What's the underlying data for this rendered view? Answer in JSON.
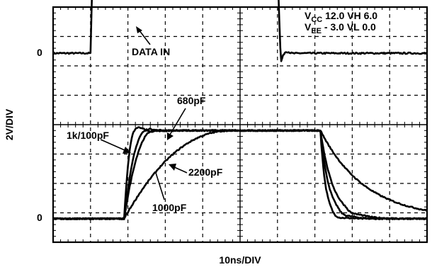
{
  "chart_data": {
    "type": "line",
    "title": "",
    "xlabel": "10ns/DIV",
    "ylabel": "2V/DIV",
    "x_unit": "ns",
    "x_range": [
      0,
      100
    ],
    "x_divisions": 10,
    "y_divisions": 8,
    "grid": true,
    "settings": {
      "vcc_prefix": "V",
      "vcc_sub": "CC",
      "vcc_text": " 12.0 VH 6.0",
      "vee_prefix": "V",
      "vee_sub": "EE",
      "vee_text": " - 3.0 VL 0.0"
    },
    "zero_labels": {
      "top": "0",
      "bottom": "0"
    },
    "annotations": {
      "data_in": "DATA IN",
      "c680": "680pF",
      "c1k100": "1k/100pF",
      "c2200": "2200pF",
      "c1000": "1000pF"
    },
    "input_trace": {
      "name": "DATA IN",
      "rise_ns": 10.0,
      "fall_ns": 60.0,
      "low_V": 0.0,
      "high_V": 6.0
    },
    "series": [
      {
        "name": "1k/100pF",
        "rise_start_ns": 19.0,
        "rise_end_ns": 22.0,
        "overshoot_V": 0.3,
        "fall_tau_ns": 1.4
      },
      {
        "name": "680pF",
        "rise_start_ns": 19.0,
        "rise_end_ns": 25.0,
        "overshoot_V": 0.15,
        "fall_tau_ns": 2.3
      },
      {
        "name": "1000pF",
        "rise_start_ns": 19.0,
        "rise_end_ns": 27.0,
        "overshoot_V": 0.05,
        "fall_tau_ns": 3.4
      },
      {
        "name": "2200pF",
        "rise_start_ns": 19.0,
        "rise_end_ns": 48.0,
        "overshoot_V": 0.0,
        "fall_tau_ns": 12.0
      }
    ],
    "output_levels": {
      "low_V": 0.0,
      "high_V": 6.0,
      "fall_start_ns": 71.5
    }
  }
}
